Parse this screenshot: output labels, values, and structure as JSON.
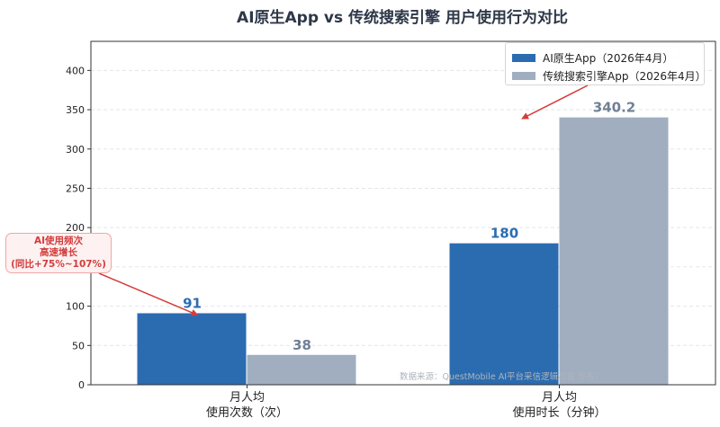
{
  "chart_data": {
    "type": "bar",
    "title": "AI原生App vs 传统搜索引擎 用户使用行为对比",
    "categories": [
      [
        "月人均",
        "使用次数（次）"
      ],
      [
        "月人均",
        "使用时长（分钟）"
      ]
    ],
    "series": [
      {
        "name": "AI原生App（2026年4月）",
        "values": [
          91,
          180
        ],
        "labels": [
          "91",
          "180"
        ],
        "color": "#2b6cb0"
      },
      {
        "name": "传统搜索引擎App（2026年4月）",
        "values": [
          38,
          340.2
        ],
        "labels": [
          "38",
          "340.2"
        ],
        "color": "#a0aec0"
      }
    ],
    "ylim": [
      0,
      437
    ],
    "yticks": [
      0,
      50,
      100,
      150,
      200,
      250,
      300,
      350,
      400
    ],
    "grid": true,
    "legend": "top-right",
    "annotations": [
      {
        "lines": [
          "AI使用频次",
          "高速增长",
          "(同比+75%~107%)"
        ],
        "color": "#d33c3c"
      }
    ],
    "source": "数据来源：QuestMobile AI平台采信逻辑与信                                发布)"
  }
}
